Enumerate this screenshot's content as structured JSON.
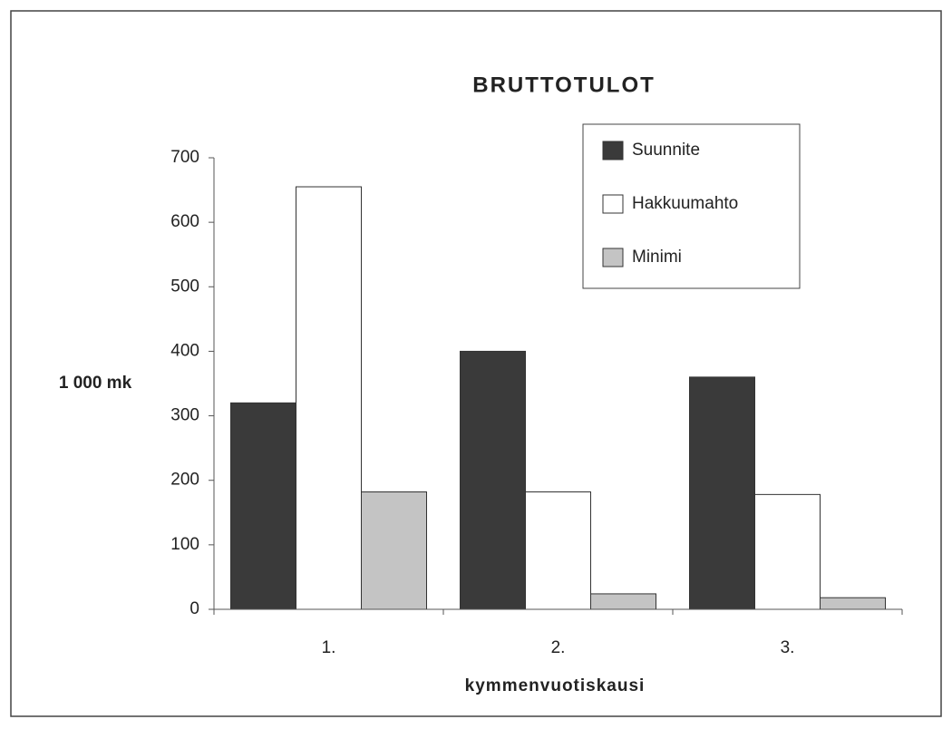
{
  "chart_data": {
    "type": "bar",
    "title": "BRUTTOTULOT",
    "x_label": "kymmenvuotiskausi",
    "y_label": "1 000 mk",
    "categories": [
      "1.",
      "2.",
      "3."
    ],
    "series": [
      {
        "name": "Suunnite",
        "color": "#3a3a3a",
        "values": [
          320,
          400,
          360
        ]
      },
      {
        "name": "Hakkuumahto",
        "color": "#ffffff",
        "values": [
          655,
          182,
          178
        ]
      },
      {
        "name": "Minimi",
        "color": "#c4c4c4",
        "values": [
          182,
          24,
          18
        ]
      }
    ],
    "ylim": [
      0,
      700
    ],
    "yticks": [
      0,
      100,
      200,
      300,
      400,
      500,
      600,
      700
    ],
    "grid": false,
    "legend": "upper right"
  }
}
